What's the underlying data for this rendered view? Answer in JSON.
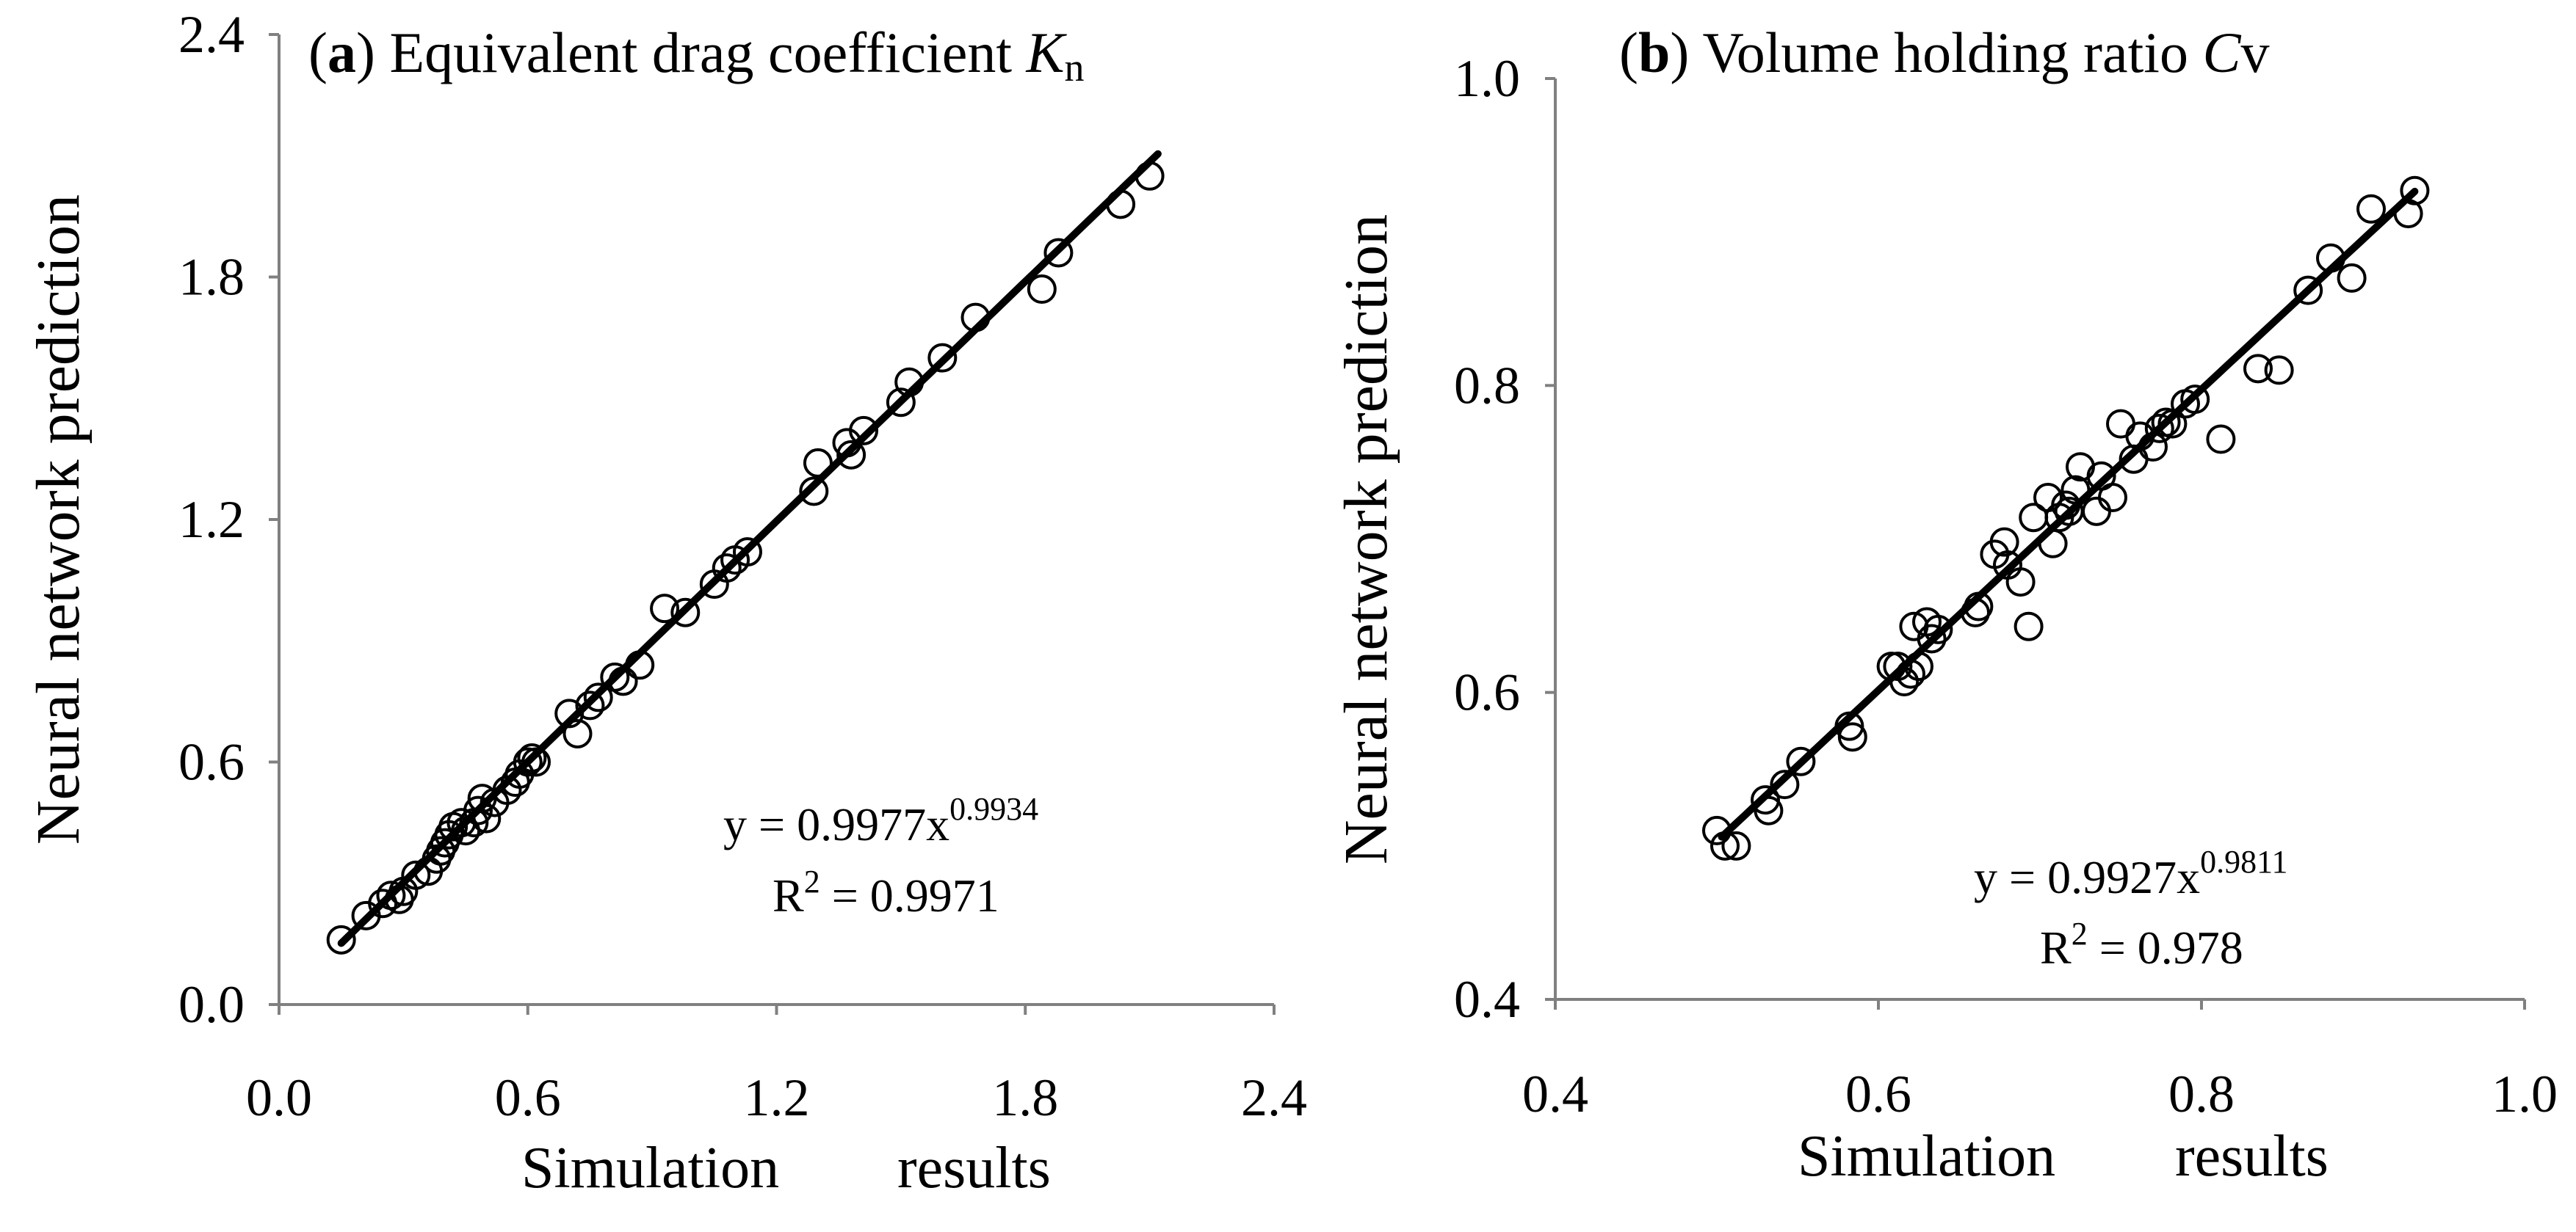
{
  "colors": {
    "axis": "#808080",
    "marker": "#000000",
    "fit": "#000000",
    "background": "#ffffff"
  },
  "chart_data": [
    {
      "id": "a",
      "type": "scatter",
      "title": {
        "panel": "a",
        "text": " Equivalent drag coefficient ",
        "symbol": "K",
        "subscript": "n"
      },
      "xlabel": {
        "word1": "Simulation",
        "word2": "results"
      },
      "ylabel": "Neural network prediction",
      "xlim": [
        0,
        2.4
      ],
      "ylim": [
        0,
        2.4
      ],
      "ticks": [
        0.0,
        0.6,
        1.2,
        1.8,
        2.4
      ],
      "tick_labels": [
        "0.0",
        "0.6",
        "1.2",
        "1.8",
        "2.4"
      ],
      "equation": {
        "base": "y = 0.9977x",
        "exponent": "0.9934"
      },
      "r2": {
        "prefix": "R",
        "sup": "2",
        "suffix": " = 0.9971"
      },
      "fit": {
        "a": 0.9977,
        "b": 0.9934,
        "x_range": [
          0.15,
          2.12
        ]
      },
      "points": [
        [
          0.15,
          0.16
        ],
        [
          0.21,
          0.22
        ],
        [
          0.25,
          0.25
        ],
        [
          0.27,
          0.27
        ],
        [
          0.29,
          0.26
        ],
        [
          0.3,
          0.28
        ],
        [
          0.33,
          0.32
        ],
        [
          0.36,
          0.33
        ],
        [
          0.38,
          0.36
        ],
        [
          0.39,
          0.38
        ],
        [
          0.4,
          0.4
        ],
        [
          0.41,
          0.42
        ],
        [
          0.42,
          0.44
        ],
        [
          0.44,
          0.45
        ],
        [
          0.45,
          0.43
        ],
        [
          0.47,
          0.45
        ],
        [
          0.48,
          0.48
        ],
        [
          0.49,
          0.51
        ],
        [
          0.5,
          0.46
        ],
        [
          0.52,
          0.5
        ],
        [
          0.55,
          0.53
        ],
        [
          0.57,
          0.55
        ],
        [
          0.58,
          0.57
        ],
        [
          0.6,
          0.6
        ],
        [
          0.61,
          0.61
        ],
        [
          0.62,
          0.6
        ],
        [
          0.7,
          0.72
        ],
        [
          0.72,
          0.67
        ],
        [
          0.75,
          0.74
        ],
        [
          0.77,
          0.76
        ],
        [
          0.81,
          0.81
        ],
        [
          0.83,
          0.8
        ],
        [
          0.87,
          0.84
        ],
        [
          0.93,
          0.98
        ],
        [
          0.98,
          0.97
        ],
        [
          1.05,
          1.04
        ],
        [
          1.08,
          1.08
        ],
        [
          1.1,
          1.1
        ],
        [
          1.13,
          1.12
        ],
        [
          1.29,
          1.27
        ],
        [
          1.3,
          1.34
        ],
        [
          1.37,
          1.39
        ],
        [
          1.38,
          1.36
        ],
        [
          1.41,
          1.42
        ],
        [
          1.5,
          1.49
        ],
        [
          1.52,
          1.54
        ],
        [
          1.6,
          1.6
        ],
        [
          1.68,
          1.7
        ],
        [
          1.84,
          1.77
        ],
        [
          1.88,
          1.86
        ],
        [
          2.03,
          1.98
        ],
        [
          2.1,
          2.05
        ]
      ]
    },
    {
      "id": "b",
      "type": "scatter",
      "title": {
        "panel": "b",
        "text": " Volume holding ratio ",
        "symbol": "C",
        "subscript": "v"
      },
      "xlabel": {
        "word1": "Simulation",
        "word2": "results"
      },
      "ylabel": "Neural network prediction",
      "xlim": [
        0.4,
        1.0
      ],
      "ylim": [
        0.4,
        1.0
      ],
      "ticks": [
        0.4,
        0.6,
        0.8,
        1.0
      ],
      "tick_labels": [
        "0.4",
        "0.6",
        "0.8",
        "1.0"
      ],
      "equation": {
        "base": "y = 0.9927x",
        "exponent": "0.9811"
      },
      "r2": {
        "prefix": "R",
        "sup": "2",
        "suffix": " = 0.978"
      },
      "fit": {
        "a": 0.9927,
        "b": 0.9811,
        "x_range": [
          0.503,
          0.932
        ]
      },
      "points": [
        [
          0.5,
          0.51
        ],
        [
          0.505,
          0.5
        ],
        [
          0.512,
          0.5
        ],
        [
          0.53,
          0.53
        ],
        [
          0.532,
          0.523
        ],
        [
          0.542,
          0.54
        ],
        [
          0.552,
          0.555
        ],
        [
          0.582,
          0.578
        ],
        [
          0.584,
          0.571
        ],
        [
          0.608,
          0.617
        ],
        [
          0.612,
          0.617
        ],
        [
          0.616,
          0.607
        ],
        [
          0.62,
          0.612
        ],
        [
          0.622,
          0.643
        ],
        [
          0.625,
          0.617
        ],
        [
          0.63,
          0.646
        ],
        [
          0.633,
          0.635
        ],
        [
          0.637,
          0.641
        ],
        [
          0.66,
          0.652
        ],
        [
          0.662,
          0.656
        ],
        [
          0.672,
          0.69
        ],
        [
          0.678,
          0.698
        ],
        [
          0.68,
          0.683
        ],
        [
          0.688,
          0.672
        ],
        [
          0.693,
          0.643
        ],
        [
          0.696,
          0.714
        ],
        [
          0.705,
          0.727
        ],
        [
          0.708,
          0.697
        ],
        [
          0.712,
          0.714
        ],
        [
          0.716,
          0.722
        ],
        [
          0.718,
          0.718
        ],
        [
          0.722,
          0.732
        ],
        [
          0.725,
          0.747
        ],
        [
          0.735,
          0.718
        ],
        [
          0.738,
          0.741
        ],
        [
          0.745,
          0.727
        ],
        [
          0.75,
          0.775
        ],
        [
          0.758,
          0.752
        ],
        [
          0.762,
          0.767
        ],
        [
          0.77,
          0.76
        ],
        [
          0.774,
          0.772
        ],
        [
          0.778,
          0.776
        ],
        [
          0.782,
          0.775
        ],
        [
          0.79,
          0.788
        ],
        [
          0.796,
          0.791
        ],
        [
          0.812,
          0.765
        ],
        [
          0.835,
          0.811
        ],
        [
          0.848,
          0.81
        ],
        [
          0.866,
          0.862
        ],
        [
          0.88,
          0.883
        ],
        [
          0.893,
          0.87
        ],
        [
          0.905,
          0.915
        ],
        [
          0.928,
          0.912
        ],
        [
          0.932,
          0.927
        ]
      ]
    }
  ]
}
